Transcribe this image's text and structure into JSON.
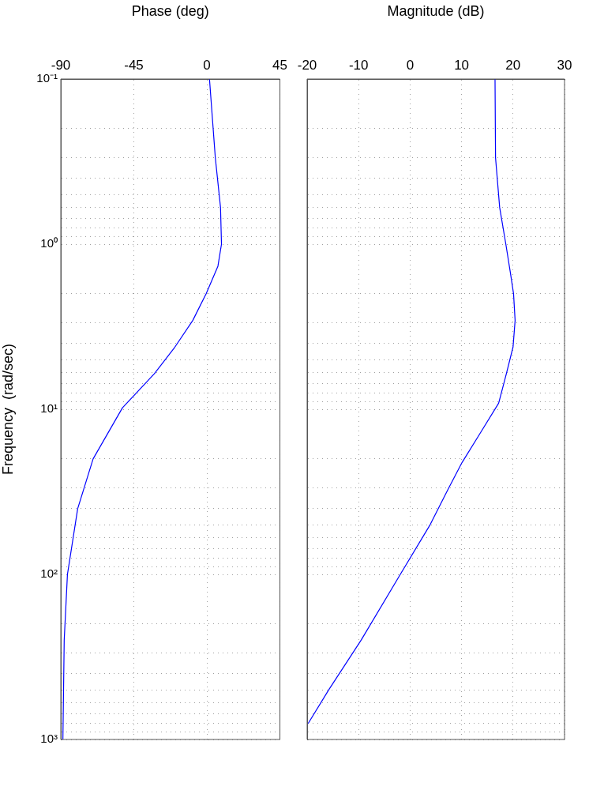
{
  "chart_data": [
    {
      "type": "line",
      "xlabel": "Magnitude (dB)",
      "log": "y",
      "grid": true,
      "tick_labels": "x",
      "xlim": [
        -20,
        30
      ],
      "xticks": [
        -20,
        -10,
        0,
        10,
        20,
        30
      ],
      "ylim": [
        1000,
        0.1
      ],
      "yticks": [
        {
          "value": 0.1,
          "label": null
        },
        {
          "value": 0.2,
          "label": null
        },
        {
          "value": 0.3,
          "label": null
        },
        {
          "value": 0.4,
          "label": null
        },
        {
          "value": 0.5,
          "label": null
        },
        {
          "value": 0.6,
          "label": null
        },
        {
          "value": 0.7,
          "label": null
        },
        {
          "value": 0.8,
          "label": null
        },
        {
          "value": 0.9,
          "label": null
        },
        {
          "value": 1,
          "label": null
        },
        {
          "value": 2,
          "label": null
        },
        {
          "value": 3,
          "label": null
        },
        {
          "value": 4,
          "label": null
        },
        {
          "value": 5,
          "label": null
        },
        {
          "value": 6,
          "label": null
        },
        {
          "value": 7,
          "label": null
        },
        {
          "value": 8,
          "label": null
        },
        {
          "value": 9,
          "label": null
        },
        {
          "value": 10,
          "label": null
        },
        {
          "value": 20,
          "label": null
        },
        {
          "value": 30,
          "label": null
        },
        {
          "value": 40,
          "label": null
        },
        {
          "value": 50,
          "label": null
        },
        {
          "value": 60,
          "label": null
        },
        {
          "value": 70,
          "label": null
        },
        {
          "value": 80,
          "label": null
        },
        {
          "value": 90,
          "label": null
        },
        {
          "value": 100,
          "label": null
        },
        {
          "value": 200,
          "label": null
        },
        {
          "value": 300,
          "label": null
        },
        {
          "value": 400,
          "label": null
        },
        {
          "value": 500,
          "label": null
        },
        {
          "value": 600,
          "label": null
        },
        {
          "value": 700,
          "label": null
        },
        {
          "value": 800,
          "label": null
        },
        {
          "value": 900,
          "label": null
        },
        {
          "value": 1000,
          "label": null
        }
      ],
      "series": [
        {
          "color": "#0000ff",
          "x": [
            16.5,
            16.6,
            17.4,
            18.6,
            19.5,
            20.1,
            20.4,
            20.0,
            18.7,
            17.2,
            13.6,
            10.1,
            7.5,
            3.9,
            -1.9,
            -9.5,
            -15.8,
            -19.8
          ],
          "values": [
            0.1,
            0.3,
            0.6,
            1,
            1.5,
            2,
            2.9,
            4.2,
            6.1,
            9.2,
            14,
            21,
            30,
            50,
            100,
            250,
            500,
            800
          ]
        }
      ]
    },
    {
      "type": "line",
      "xlabel": "Phase (deg)",
      "ylabel": "Frequency  (rad/sec)",
      "log": "y",
      "grid": true,
      "xlim": [
        -90,
        45
      ],
      "xticks": [
        -90,
        -45,
        0,
        45
      ],
      "ylim": [
        1000,
        0.1
      ],
      "yticks": [
        {
          "value": 0.1,
          "label": "10⁻¹"
        },
        {
          "value": 0.2,
          "label": null
        },
        {
          "value": 0.3,
          "label": null
        },
        {
          "value": 0.4,
          "label": null
        },
        {
          "value": 0.5,
          "label": null
        },
        {
          "value": 0.6,
          "label": null
        },
        {
          "value": 0.7,
          "label": null
        },
        {
          "value": 0.8,
          "label": null
        },
        {
          "value": 0.9,
          "label": null
        },
        {
          "value": 1,
          "label": "10⁰"
        },
        {
          "value": 2,
          "label": null
        },
        {
          "value": 3,
          "label": null
        },
        {
          "value": 4,
          "label": null
        },
        {
          "value": 5,
          "label": null
        },
        {
          "value": 6,
          "label": null
        },
        {
          "value": 7,
          "label": null
        },
        {
          "value": 8,
          "label": null
        },
        {
          "value": 9,
          "label": null
        },
        {
          "value": 10,
          "label": "10¹"
        },
        {
          "value": 20,
          "label": null
        },
        {
          "value": 30,
          "label": null
        },
        {
          "value": 40,
          "label": null
        },
        {
          "value": 50,
          "label": null
        },
        {
          "value": 60,
          "label": null
        },
        {
          "value": 70,
          "label": null
        },
        {
          "value": 80,
          "label": null
        },
        {
          "value": 90,
          "label": null
        },
        {
          "value": 100,
          "label": "10²"
        },
        {
          "value": 200,
          "label": null
        },
        {
          "value": 300,
          "label": null
        },
        {
          "value": 400,
          "label": null
        },
        {
          "value": 500,
          "label": null
        },
        {
          "value": 600,
          "label": null
        },
        {
          "value": 700,
          "label": null
        },
        {
          "value": 800,
          "label": null
        },
        {
          "value": 900,
          "label": null
        },
        {
          "value": 1000,
          "label": "10³"
        }
      ],
      "series": [
        {
          "color": "#0000ff",
          "x": [
            1.6,
            5.2,
            8.4,
            9.0,
            6.8,
            -0.5,
            -8.7,
            -19.7,
            -32.4,
            -52,
            -70.1,
            -79.6,
            -85.9,
            -87.9,
            -88.7
          ],
          "values": [
            0.1,
            0.3,
            0.6,
            1,
            1.36,
            2,
            2.9,
            4.2,
            6.1,
            9.8,
            20,
            40,
            100,
            250,
            1000
          ]
        }
      ]
    }
  ]
}
